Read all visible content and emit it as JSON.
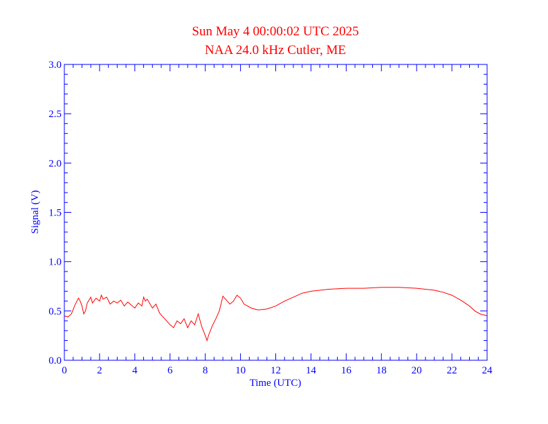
{
  "chart_data": {
    "type": "line",
    "title": "Sun May 4 00:00:02 UTC 2025",
    "subtitle": "NAA 24.0 kHz Cutler, ME",
    "xlabel": "Time (UTC)",
    "ylabel": "Signal (V)",
    "xlim": [
      0,
      24
    ],
    "ylim": [
      0,
      3.0
    ],
    "x_ticks": [
      "0",
      "2",
      "4",
      "6",
      "8",
      "10",
      "12",
      "14",
      "16",
      "18",
      "20",
      "22",
      "24"
    ],
    "y_ticks": [
      "0.0",
      "0.5",
      "1.0",
      "1.5",
      "2.0",
      "2.5",
      "3.0"
    ],
    "grid": false,
    "colors": {
      "axis": "#0000ff",
      "series": "#ff0000",
      "title": "#ff0000"
    },
    "series": [
      {
        "x": [
          0.0,
          0.2,
          0.4,
          0.6,
          0.8,
          0.9,
          1.0,
          1.1,
          1.2,
          1.3,
          1.4,
          1.5,
          1.6,
          1.8,
          2.0,
          2.1,
          2.2,
          2.4,
          2.6,
          2.8,
          3.0,
          3.2,
          3.4,
          3.6,
          3.8,
          4.0,
          4.2,
          4.4,
          4.5,
          4.6,
          4.7,
          4.8,
          5.0,
          5.2,
          5.4,
          5.6,
          5.8,
          6.0,
          6.2,
          6.4,
          6.6,
          6.8,
          7.0,
          7.2,
          7.4,
          7.6,
          7.8,
          8.0,
          8.1,
          8.2,
          8.4,
          8.6,
          8.8,
          9.0,
          9.2,
          9.4,
          9.6,
          9.8,
          10.0,
          10.2,
          10.4,
          10.6,
          10.8,
          11.0,
          11.5,
          12.0,
          12.5,
          13.0,
          13.5,
          14.0,
          15.0,
          16.0,
          17.0,
          18.0,
          19.0,
          20.0,
          20.5,
          21.0,
          21.5,
          22.0,
          22.5,
          23.0,
          23.3,
          23.6,
          24.0
        ],
        "y": [
          0.45,
          0.44,
          0.47,
          0.56,
          0.63,
          0.6,
          0.55,
          0.47,
          0.5,
          0.58,
          0.61,
          0.64,
          0.58,
          0.63,
          0.6,
          0.66,
          0.62,
          0.64,
          0.57,
          0.6,
          0.58,
          0.61,
          0.55,
          0.59,
          0.56,
          0.53,
          0.58,
          0.55,
          0.64,
          0.6,
          0.62,
          0.59,
          0.53,
          0.57,
          0.48,
          0.44,
          0.4,
          0.36,
          0.33,
          0.4,
          0.37,
          0.42,
          0.33,
          0.4,
          0.36,
          0.47,
          0.34,
          0.25,
          0.2,
          0.26,
          0.35,
          0.42,
          0.5,
          0.65,
          0.61,
          0.57,
          0.6,
          0.66,
          0.63,
          0.57,
          0.55,
          0.53,
          0.52,
          0.51,
          0.52,
          0.55,
          0.6,
          0.64,
          0.68,
          0.7,
          0.72,
          0.73,
          0.73,
          0.74,
          0.74,
          0.73,
          0.72,
          0.71,
          0.69,
          0.66,
          0.61,
          0.55,
          0.5,
          0.47,
          0.45
        ]
      }
    ]
  }
}
